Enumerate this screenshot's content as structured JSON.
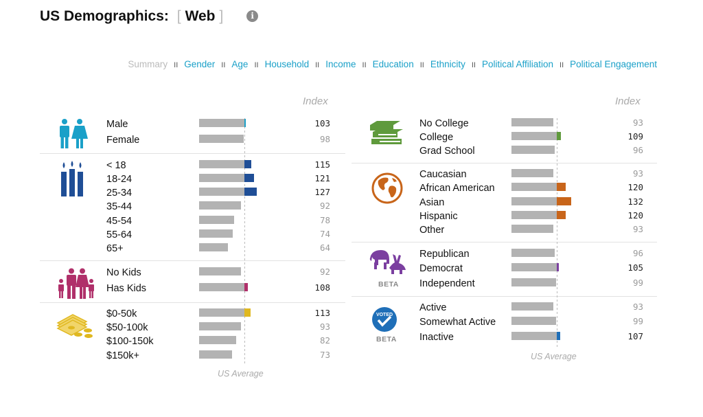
{
  "header": {
    "title": "US Demographics:",
    "bracket_open": "[",
    "view": "Web",
    "bracket_close": "]",
    "info_icon": "i"
  },
  "nav": [
    "Summary",
    "Gender",
    "Age",
    "Household",
    "Income",
    "Education",
    "Ethnicity",
    "Political Affiliation",
    "Political Engagement"
  ],
  "nav_separator": "II",
  "index_label": "Index",
  "us_average_label": "US Average",
  "beta_label": "BETA",
  "colors": {
    "gender": "#1aa0c8",
    "age": "#1f4e96",
    "household": "#b0306a",
    "income": "#e0b820",
    "education": "#5f9a3c",
    "ethnicity": "#c8651a",
    "political": "#7b3fa0",
    "engagement": "#1f6fb8",
    "base": "#b3b3b3"
  },
  "chart_data": {
    "type": "bar",
    "baseline": 100,
    "groups": [
      {
        "name": "Gender",
        "icon": "male-female-icon",
        "categories": [
          "Male",
          "Female"
        ],
        "values": [
          103,
          98
        ]
      },
      {
        "name": "Age",
        "icon": "candles-icon",
        "categories": [
          "< 18",
          "18-24",
          "25-34",
          "35-44",
          "45-54",
          "55-64",
          "65+"
        ],
        "values": [
          115,
          121,
          127,
          92,
          78,
          74,
          64
        ]
      },
      {
        "name": "Household",
        "icon": "family-icon",
        "categories": [
          "No Kids",
          "Has Kids"
        ],
        "values": [
          92,
          108
        ]
      },
      {
        "name": "Income",
        "icon": "money-icon",
        "categories": [
          "$0-50k",
          "$50-100k",
          "$100-150k",
          "$150k+"
        ],
        "values": [
          113,
          93,
          82,
          73
        ]
      },
      {
        "name": "Education",
        "icon": "books-icon",
        "categories": [
          "No College",
          "College",
          "Grad School"
        ],
        "values": [
          93,
          109,
          96
        ]
      },
      {
        "name": "Ethnicity",
        "icon": "globe-icon",
        "categories": [
          "Caucasian",
          "African American",
          "Asian",
          "Hispanic",
          "Other"
        ],
        "values": [
          93,
          120,
          132,
          120,
          93
        ]
      },
      {
        "name": "Political Affiliation",
        "icon": "elephant-donkey-icon",
        "categories": [
          "Republican",
          "Democrat",
          "Independent"
        ],
        "values": [
          96,
          105,
          99
        ]
      },
      {
        "name": "Political Engagement",
        "icon": "voted-badge-icon",
        "categories": [
          "Active",
          "Somewhat Active",
          "Inactive"
        ],
        "values": [
          93,
          99,
          107
        ]
      }
    ]
  }
}
